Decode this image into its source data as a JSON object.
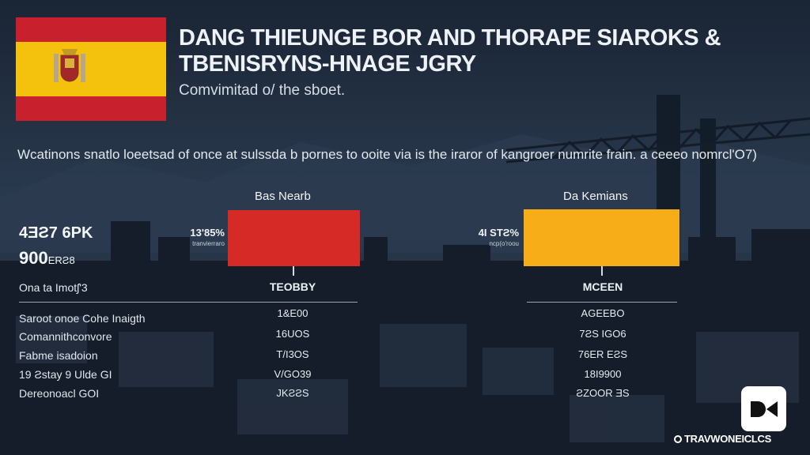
{
  "title": "DANG THIEUNGE BOR AND THORAPE SIAROKS & TBENISRYNS-HNAGE JGRY",
  "subtitle": "Comvimitad o/ the sboet.",
  "intro": "Wcatinons snatlo loeetsad of once at sulssda b pornes to ooite via is the iraror of kangroer numrite frain. a ceeeo nomrcl'O7)",
  "left_stats": {
    "big_value": "4ƎƧ7 6PK",
    "second_value": "900",
    "second_unit": "ERƧ8",
    "header": "Ona ta Imotʃ'3"
  },
  "columns": [
    {
      "title": "Bas Nearb",
      "bar_label": "13'85%",
      "bar_sub": "tranvierraro",
      "bar_color": "#d62a27",
      "head": "TEOBBY",
      "values": [
        "1&E00",
        "16UOS",
        "T/I3OS",
        "V/GO39",
        "JKƧƧS"
      ]
    },
    {
      "title": "Da Kemians",
      "bar_label": "4I STƧ%",
      "bar_sub": "ncp(o'roou",
      "bar_color": "#f7ad18",
      "head": "MCEEN",
      "values": [
        "AGEEBO",
        "7ƧS IGO6",
        "76ER EƧS",
        "18I9900",
        "ƧZOOR ƎS"
      ]
    }
  ],
  "row_labels": [
    "Saroot onoe Cohe Inaigth",
    "Comannithconvore",
    "Fabme isadoion",
    "19 Ƨstay 9 Ulde GI",
    "Dereonoacl GOI"
  ],
  "watermark": "TRAVWONEICLCS"
}
